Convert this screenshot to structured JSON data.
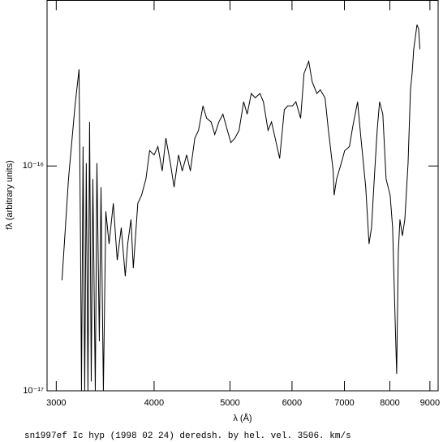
{
  "chart_data": {
    "type": "line",
    "caption": "sn1997ef Ic hyp (1998 02 24) deredsh. by hel. vel.  3506. km/s",
    "xlabel": "λ (Å)",
    "ylabel": "fλ (arbitrary units)",
    "xscale": "log",
    "yscale": "log",
    "color": "#000000",
    "xlim": [
      2920,
      9220
    ],
    "ylim": [
      1e-17,
      5.45e-16
    ],
    "xticks": [
      3000,
      4000,
      5000,
      6000,
      7000,
      8000,
      9000
    ],
    "yticks": [
      {
        "value": 1e-17,
        "label": "10⁻¹⁷"
      },
      {
        "value": 1e-16,
        "label": "10⁻¹⁶"
      }
    ],
    "x": [
      3051,
      3110,
      3170,
      3208,
      3222,
      3231,
      3246,
      3262,
      3277,
      3293,
      3309,
      3325,
      3341,
      3365,
      3381,
      3405,
      3422,
      3446,
      3471,
      3504,
      3548,
      3589,
      3632,
      3675,
      3701,
      3737,
      3763,
      3813,
      3855,
      3905,
      3948,
      4000,
      4045,
      4097,
      4141,
      4196,
      4242,
      4298,
      4345,
      4402,
      4450,
      4509,
      4558,
      4618,
      4668,
      4730,
      4781,
      4839,
      4897,
      4962,
      5013,
      5074,
      5135,
      5205,
      5259,
      5323,
      5385,
      5460,
      5516,
      5592,
      5649,
      5727,
      5786,
      5866,
      5926,
      6008,
      6069,
      6154,
      6216,
      6303,
      6366,
      6455,
      6520,
      6612,
      6678,
      6772,
      6791,
      6840,
      6936,
      7005,
      7104,
      7174,
      7276,
      7348,
      7452,
      7525,
      7580,
      7652,
      7707,
      7762,
      7836,
      7912,
      8007,
      8065,
      8123,
      8162,
      8201,
      8241,
      8300,
      8360,
      8440,
      8500,
      8541,
      8582,
      8623,
      8665,
      8706,
      8738
    ],
    "values": [
      3.1e-17,
      8.75e-17,
      1.85e-16,
      2.69e-16,
      4.5e-17,
      1e-17,
      1.22e-16,
      1e-17,
      1.03e-16,
      1e-17,
      1.57e-16,
      1.1e-17,
      8.75e-17,
      1e-17,
      1.03e-16,
      1.66e-17,
      8.05e-17,
      1e-17,
      6.28e-17,
      4.5e-17,
      6.82e-17,
      3.81e-17,
      5.32e-17,
      3.23e-17,
      4.5e-17,
      5.78e-17,
      3.51e-17,
      6.82e-17,
      7.41e-17,
      8.75e-17,
      1.17e-16,
      1.12e-16,
      1.22e-16,
      9.5e-17,
      1.33e-16,
      1.03e-16,
      8.05e-17,
      1.12e-16,
      9.5e-17,
      1.12e-16,
      9.5e-17,
      1.33e-16,
      1.44e-16,
      1.85e-16,
      1.63e-16,
      1.57e-16,
      1.38e-16,
      1.57e-16,
      1.7e-16,
      1.44e-16,
      1.27e-16,
      1.33e-16,
      1.44e-16,
      1.93e-16,
      1.7e-16,
      2.1e-16,
      2.01e-16,
      2.1e-16,
      1.93e-16,
      1.44e-16,
      1.57e-16,
      1.27e-16,
      1.08e-16,
      1.78e-16,
      1.85e-16,
      1.85e-16,
      1.93e-16,
      1.63e-16,
      2.58e-16,
      2.92e-16,
      2.37e-16,
      2.1e-16,
      2.18e-16,
      2.01e-16,
      1.44e-16,
      9.5e-17,
      7.41e-17,
      8.75e-17,
      1.03e-16,
      1.17e-16,
      1.22e-16,
      1.5e-16,
      1.93e-16,
      1.33e-16,
      8.05e-17,
      4.5e-17,
      5.32e-17,
      9.5e-17,
      1.44e-16,
      1.93e-16,
      1.7e-16,
      8.75e-17,
      7.41e-17,
      5.32e-17,
      2.13e-17,
      1.19e-17,
      4.14e-17,
      5.78e-17,
      4.89e-17,
      5.78e-17,
      1.03e-16,
      2.18e-16,
      2.58e-16,
      3.31e-16,
      3.75e-16,
      4.25e-16,
      4.07e-16,
      3.31e-16
    ]
  }
}
